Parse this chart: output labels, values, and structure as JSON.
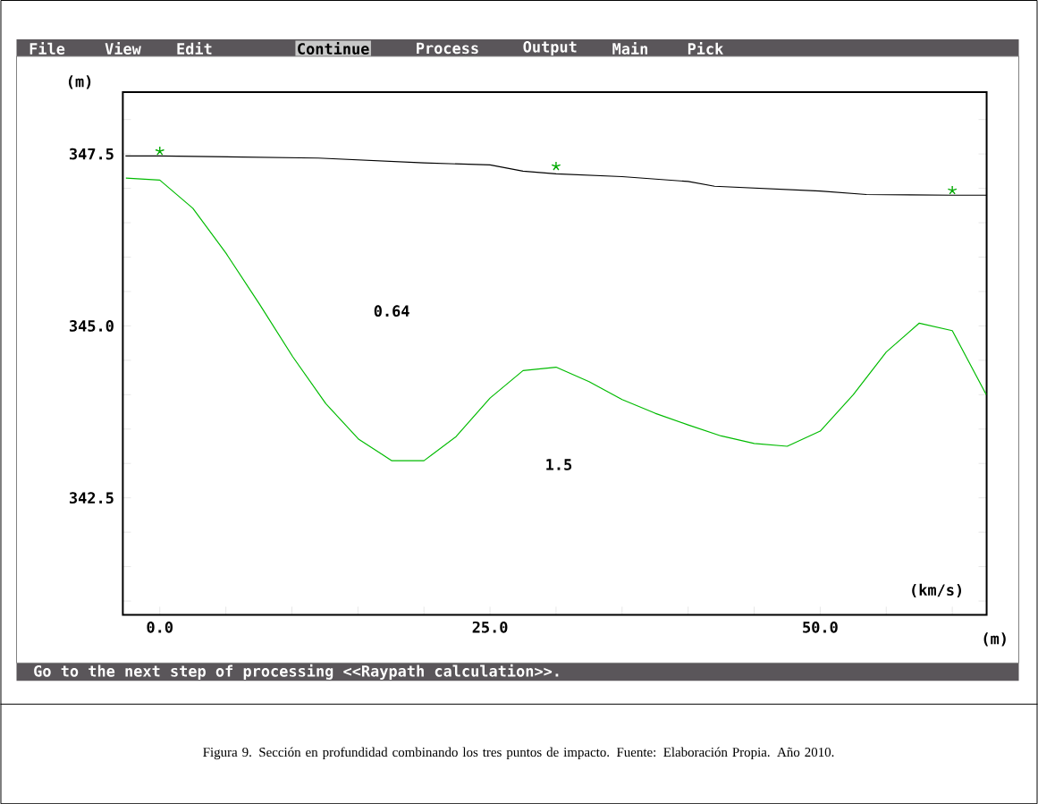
{
  "chart_data": {
    "type": "line",
    "xlabel": "(m)",
    "ylabel": "(m)",
    "xlim": [
      -2.8,
      62.6
    ],
    "ylim": [
      340.8,
      348.4
    ],
    "xticks": [
      {
        "value": 0,
        "label": "0.0"
      },
      {
        "value": 5,
        "label": null
      },
      {
        "value": 10,
        "label": null
      },
      {
        "value": 15,
        "label": null
      },
      {
        "value": 20,
        "label": null
      },
      {
        "value": 25,
        "label": "25.0"
      },
      {
        "value": 30,
        "label": null
      },
      {
        "value": 35,
        "label": null
      },
      {
        "value": 40,
        "label": null
      },
      {
        "value": 45,
        "label": null
      },
      {
        "value": 50,
        "label": "50.0"
      },
      {
        "value": 55,
        "label": null
      },
      {
        "value": 60,
        "label": null
      }
    ],
    "yticks": [
      {
        "value": 341.0,
        "label": null
      },
      {
        "value": 341.5,
        "label": null
      },
      {
        "value": 342.0,
        "label": null
      },
      {
        "value": 342.5,
        "label": "342.5"
      },
      {
        "value": 343.0,
        "label": null
      },
      {
        "value": 343.5,
        "label": null
      },
      {
        "value": 344.0,
        "label": null
      },
      {
        "value": 344.5,
        "label": null
      },
      {
        "value": 345.0,
        "label": "345.0"
      },
      {
        "value": 345.5,
        "label": null
      },
      {
        "value": 346.0,
        "label": null
      },
      {
        "value": 346.5,
        "label": null
      },
      {
        "value": 347.0,
        "label": null
      },
      {
        "value": 347.5,
        "label": "347.5"
      },
      {
        "value": 348.0,
        "label": null
      }
    ],
    "grid": false,
    "series": [
      {
        "type": "line",
        "color": "#000000",
        "marker": "none",
        "x": [
          -2.6,
          0,
          12,
          20,
          25,
          27.5,
          30,
          35,
          40,
          42,
          50,
          53.5,
          60,
          62.6
        ],
        "values": [
          347.47,
          347.47,
          347.44,
          347.37,
          347.34,
          347.25,
          347.21,
          347.17,
          347.1,
          347.03,
          346.96,
          346.91,
          346.9,
          346.9
        ]
      },
      {
        "type": "scatter",
        "color": "#00aa00",
        "marker": "cross",
        "x": [
          0,
          30,
          60
        ],
        "values": [
          347.54,
          347.32,
          346.97
        ]
      },
      {
        "type": "line",
        "color": "#00bb00",
        "marker": "none",
        "x": [
          -2.57,
          0,
          2.5,
          5,
          7.57,
          10.07,
          12.57,
          15.07,
          17.57,
          20,
          22.43,
          25,
          27.5,
          30,
          32.5,
          35,
          37.5,
          40,
          42.5,
          45,
          47.5,
          50,
          52.5,
          55,
          57.5,
          60,
          62.57
        ],
        "values": [
          347.15,
          347.12,
          346.71,
          346.06,
          345.31,
          344.55,
          343.87,
          343.35,
          343.04,
          343.04,
          343.39,
          343.95,
          344.35,
          344.4,
          344.19,
          343.93,
          343.73,
          343.56,
          343.4,
          343.29,
          343.25,
          343.47,
          344.0,
          344.62,
          345.04,
          344.93,
          344.0
        ]
      }
    ],
    "annotations": [
      "(km/s)",
      "File",
      "View",
      "Edit",
      "Continue",
      "Process",
      "Output",
      "Main",
      "Pick",
      "Go to the next step of processing  <<Raypath calculation>>.",
      "Figura 9. Sección en profundidad combinando los tres puntos de impacto. Fuente: Elaboración Propia. Año 2010.",
      "0.64",
      "1.5"
    ]
  }
}
